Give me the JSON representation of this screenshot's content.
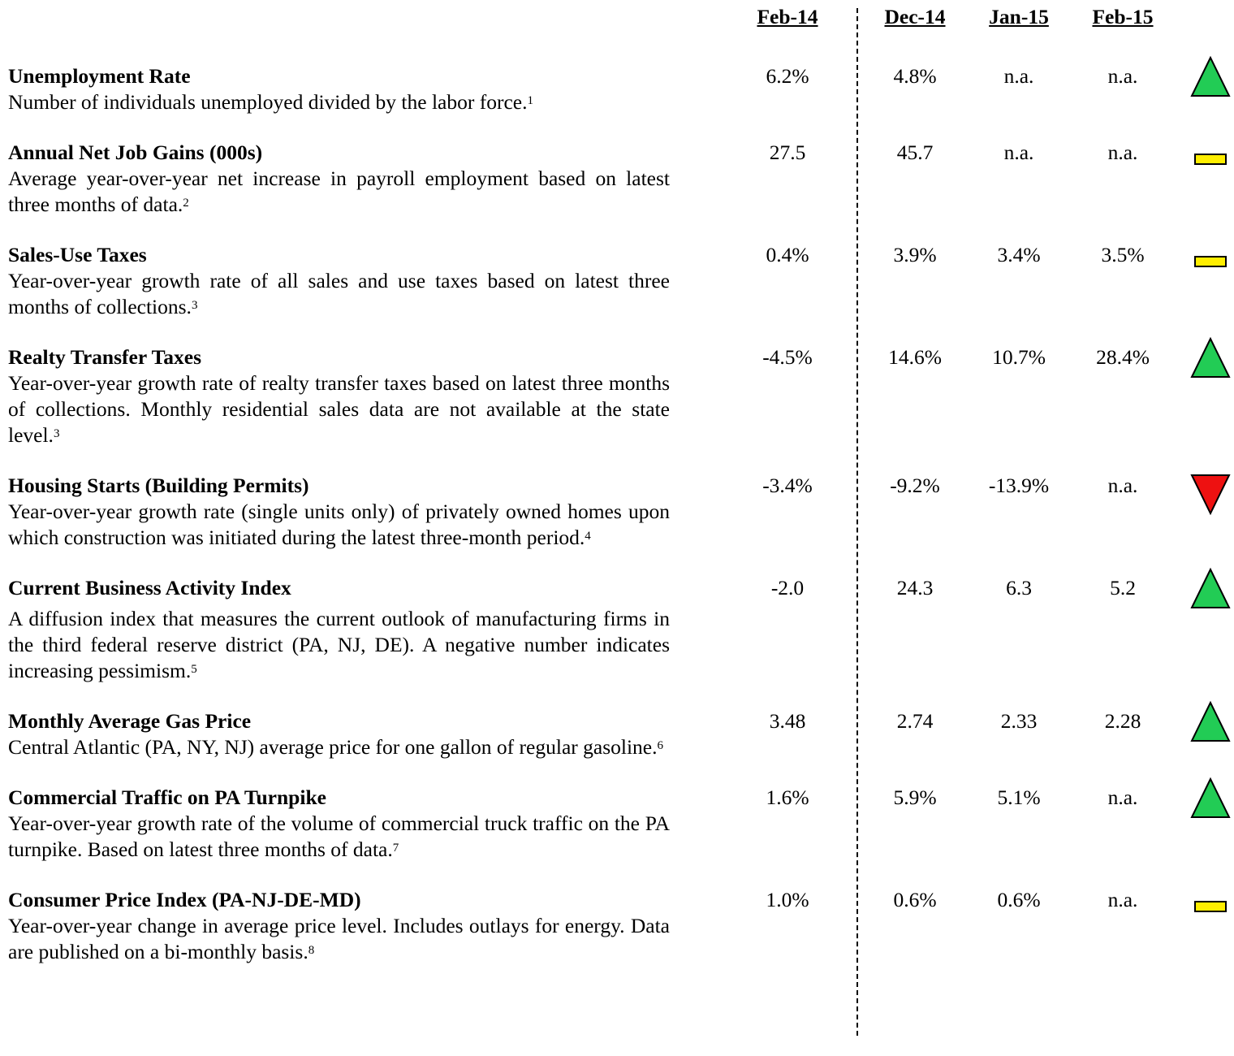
{
  "columns": [
    "Feb-14",
    "Dec-14",
    "Jan-15",
    "Feb-15"
  ],
  "rows": [
    {
      "title": "Unemployment Rate",
      "description": "Number of individuals unemployed divided by the labor force.",
      "note": "1",
      "values": [
        "6.2%",
        "4.8%",
        "n.a.",
        "n.a."
      ],
      "trend": "up"
    },
    {
      "title": "Annual Net Job Gains (000s)",
      "description": "Average year-over-year net increase in payroll employment based on latest three months of data.",
      "note": "2",
      "values": [
        "27.5",
        "45.7",
        "n.a.",
        "n.a."
      ],
      "trend": "flat"
    },
    {
      "title": "Sales-Use Taxes",
      "description": "Year-over-year growth rate of all sales and use taxes based on latest three months of collections.",
      "note": "3",
      "values": [
        "0.4%",
        "3.9%",
        "3.4%",
        "3.5%"
      ],
      "trend": "flat"
    },
    {
      "title": "Realty Transfer Taxes",
      "description": "Year-over-year growth rate of realty transfer taxes based on latest three months of collections.  Monthly residential sales data are not available at the state level.",
      "note": "3",
      "values": [
        "-4.5%",
        "14.6%",
        "10.7%",
        "28.4%"
      ],
      "trend": "up"
    },
    {
      "title": "Housing Starts (Building Permits)",
      "description": "Year-over-year growth rate (single units only) of privately owned homes upon which construction was initiated during the latest three-month period.",
      "note": "4",
      "values": [
        "-3.4%",
        "-9.2%",
        "-13.9%",
        "n.a."
      ],
      "trend": "down"
    },
    {
      "title": "Current Business Activity Index",
      "description": "A diffusion index that measures the current outlook of manufacturing firms in the third federal reserve district  (PA, NJ, DE). A negative number indicates increasing pessimism.",
      "note": "5",
      "values": [
        "-2.0",
        "24.3",
        "6.3",
        "5.2"
      ],
      "trend": "up"
    },
    {
      "title": "Monthly Average Gas Price",
      "description": "Central Atlantic (PA, NY, NJ) average price for one gallon of regular gasoline.",
      "note": "6",
      "values": [
        "3.48",
        "2.74",
        "2.33",
        "2.28"
      ],
      "trend": "up"
    },
    {
      "title": "Commercial Traffic on PA Turnpike",
      "description": "Year-over-year growth rate of the volume of commercial truck traffic on the PA turnpike. Based on latest three months of data.",
      "note": "7",
      "values": [
        "1.6%",
        "5.9%",
        "5.1%",
        "n.a."
      ],
      "trend": "up"
    },
    {
      "title": "Consumer Price Index (PA-NJ-DE-MD)",
      "description": "Year-over-year change in average price level. Includes outlays for energy. Data are published on a bi-monthly basis.",
      "note": "8",
      "values": [
        "1.0%",
        "0.6%",
        "0.6%",
        "n.a."
      ],
      "trend": "flat"
    }
  ]
}
